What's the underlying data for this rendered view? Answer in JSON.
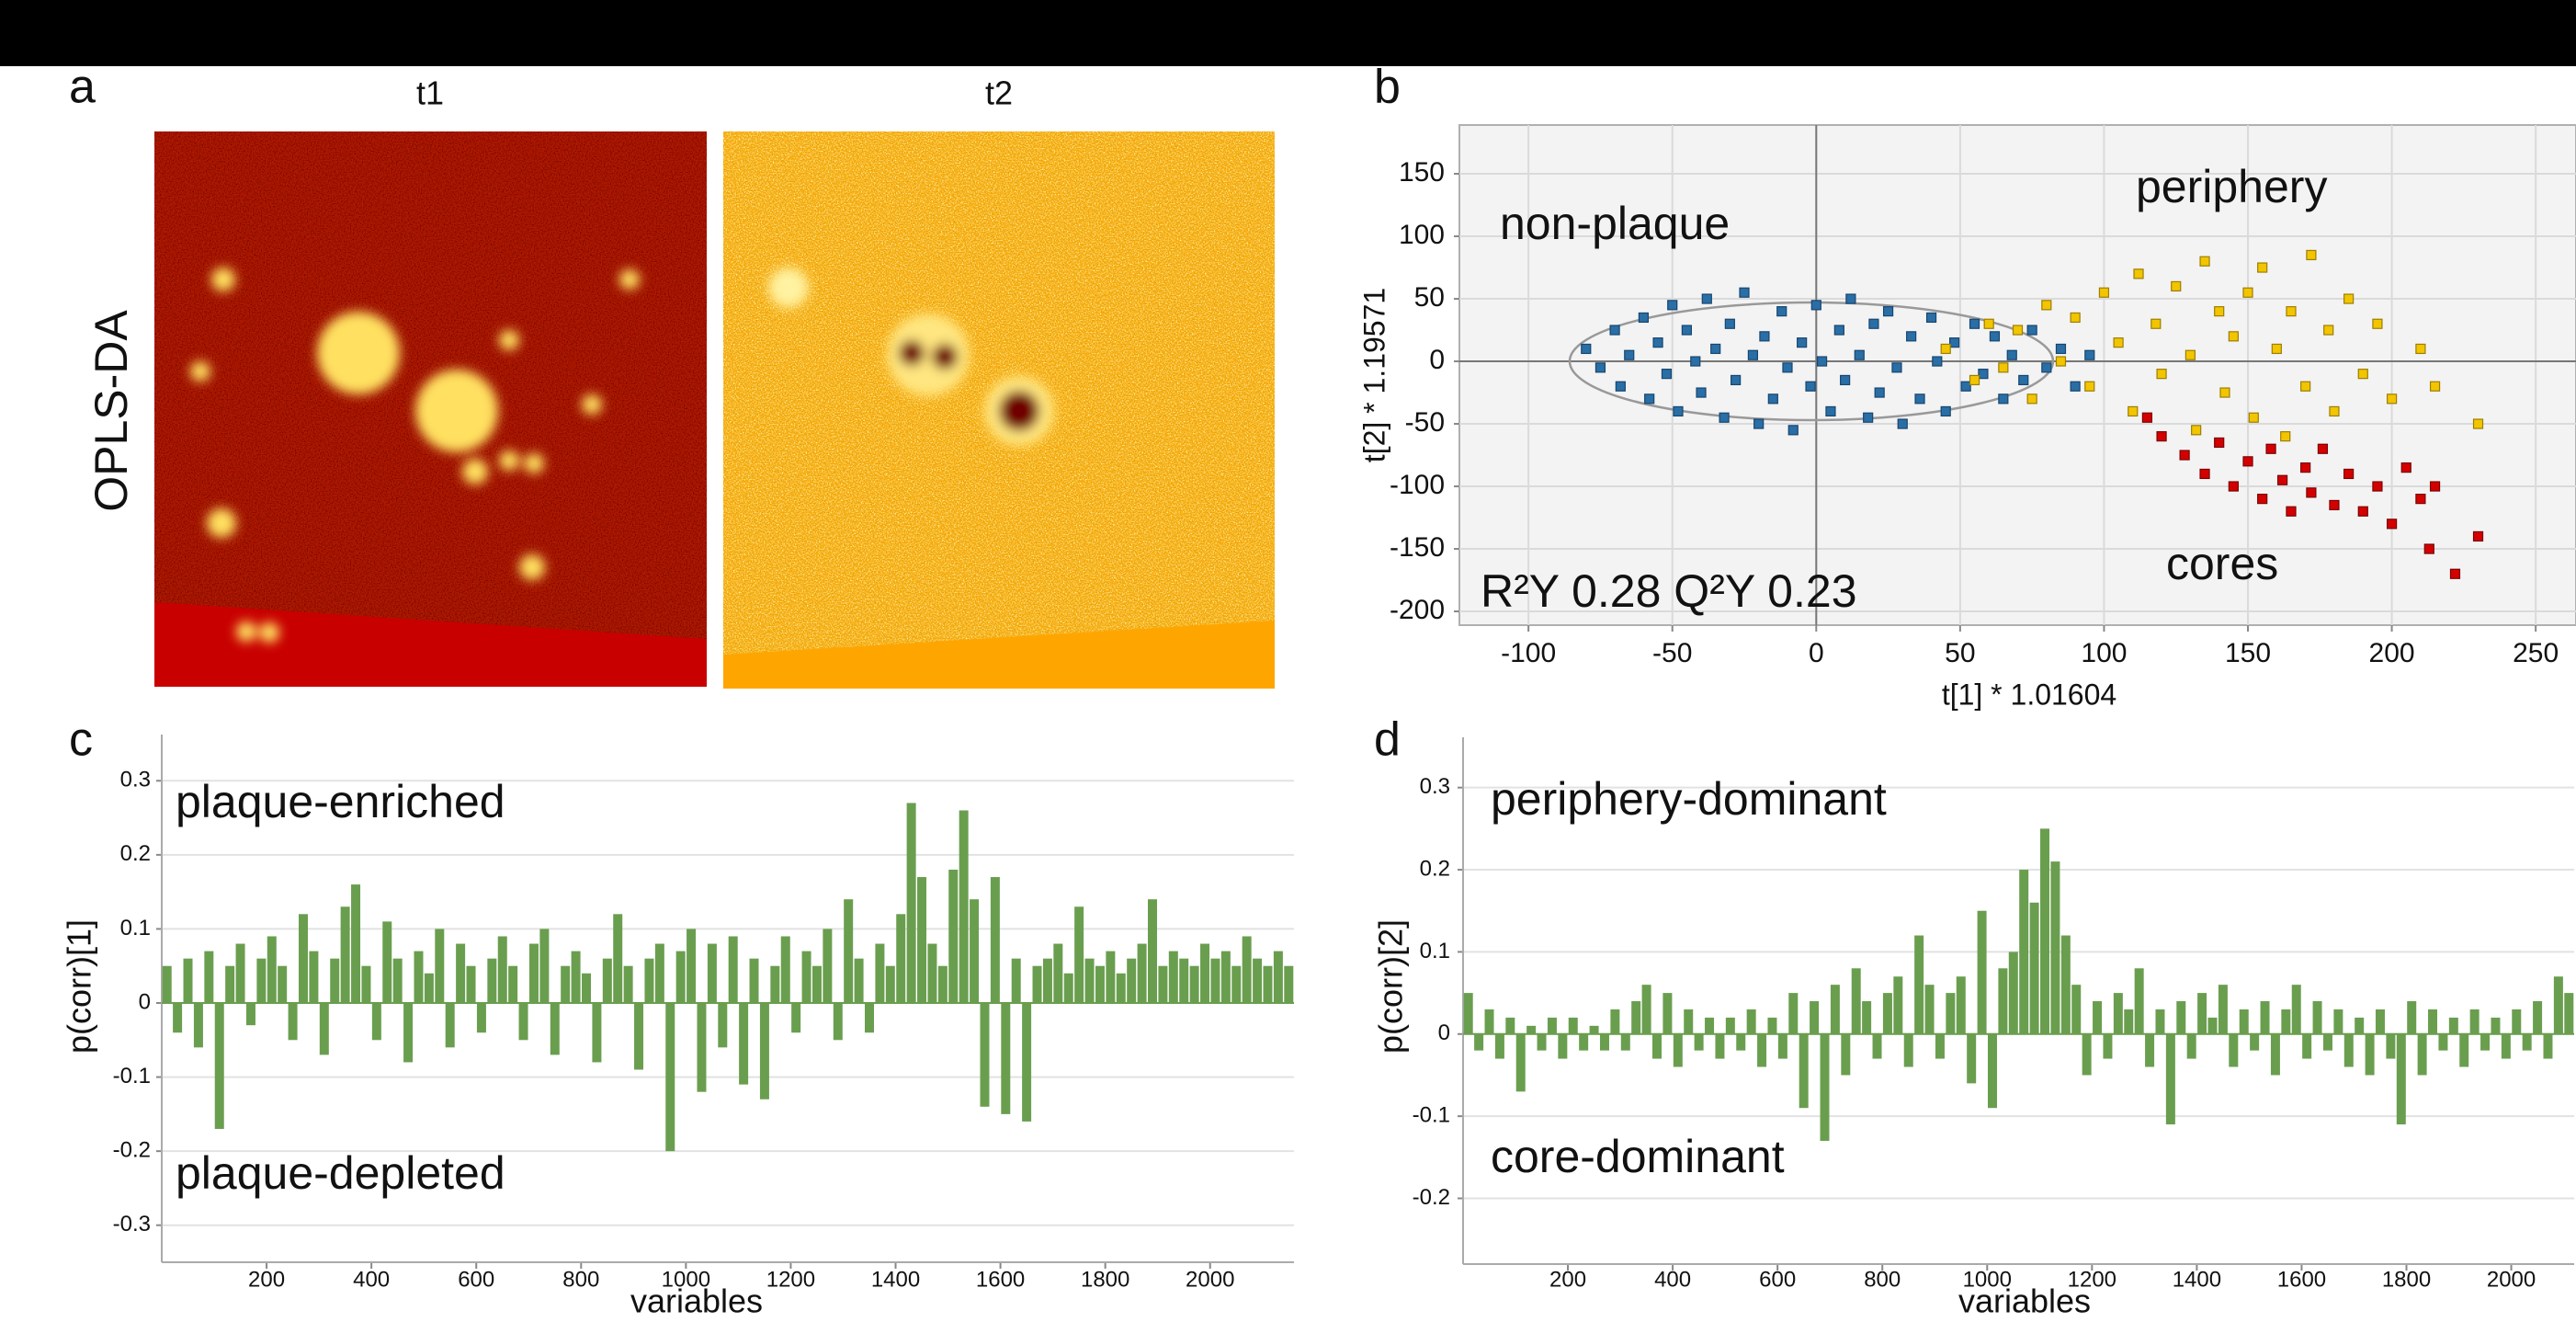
{
  "panel_a": {
    "label": "a",
    "images": [
      {
        "title": "t1"
      },
      {
        "title": "t2"
      }
    ],
    "row_label": "OPLS-DA"
  },
  "chart_data": [
    {
      "type": "scatter",
      "panel_label": "b",
      "xlabel": "t[1] * 1.01604",
      "ylabel": "t[2] * 1.19571",
      "annotations": [
        "R²Y 0.28 Q²Y 0.23"
      ],
      "xlim": [
        -124,
        264
      ],
      "ylim": [
        -211,
        189
      ],
      "xticks": [
        -100,
        -50,
        0,
        50,
        100,
        150,
        200,
        250
      ],
      "yticks": [
        -200,
        -150,
        -100,
        -50,
        0,
        50,
        100,
        150
      ],
      "grid": true,
      "series": [
        {
          "name": "non-plaque",
          "color": "#2a6ea6",
          "x": [
            -80,
            -75,
            -70,
            -68,
            -65,
            -60,
            -58,
            -55,
            -52,
            -50,
            -48,
            -45,
            -42,
            -40,
            -38,
            -35,
            -32,
            -30,
            -28,
            -25,
            -22,
            -20,
            -18,
            -15,
            -12,
            -10,
            -8,
            -5,
            -2,
            0,
            2,
            5,
            8,
            10,
            12,
            15,
            18,
            20,
            22,
            25,
            28,
            30,
            33,
            36,
            40,
            42,
            45,
            48,
            52,
            55,
            58,
            62,
            65,
            68,
            72,
            75,
            80,
            85,
            90,
            95
          ],
          "y": [
            10,
            -5,
            25,
            -20,
            5,
            35,
            -30,
            15,
            -10,
            45,
            -40,
            25,
            0,
            -25,
            50,
            10,
            -45,
            30,
            -15,
            55,
            5,
            -50,
            20,
            -30,
            40,
            -5,
            -55,
            15,
            -20,
            45,
            0,
            -40,
            25,
            -15,
            50,
            5,
            -45,
            30,
            -25,
            40,
            -5,
            -50,
            20,
            -30,
            35,
            0,
            -40,
            15,
            -20,
            30,
            -10,
            20,
            -30,
            5,
            -15,
            25,
            -5,
            10,
            -20,
            5
          ]
        },
        {
          "name": "periphery",
          "color": "#f2c500",
          "x": [
            45,
            55,
            60,
            65,
            70,
            75,
            80,
            85,
            90,
            95,
            100,
            105,
            110,
            112,
            118,
            120,
            125,
            130,
            132,
            135,
            140,
            142,
            145,
            150,
            152,
            155,
            160,
            163,
            165,
            170,
            172,
            178,
            180,
            185,
            190,
            195,
            200,
            210,
            215,
            230
          ],
          "y": [
            10,
            -15,
            30,
            -5,
            25,
            -30,
            45,
            0,
            35,
            -20,
            55,
            15,
            -40,
            70,
            30,
            -10,
            60,
            5,
            -55,
            80,
            40,
            -25,
            20,
            55,
            -45,
            75,
            10,
            -60,
            40,
            -20,
            85,
            25,
            -40,
            50,
            -10,
            30,
            -30,
            10,
            -20,
            -50
          ]
        },
        {
          "name": "cores",
          "color": "#d40000",
          "x": [
            115,
            120,
            128,
            135,
            140,
            145,
            150,
            155,
            158,
            162,
            165,
            170,
            172,
            176,
            180,
            185,
            190,
            195,
            200,
            205,
            210,
            213,
            215,
            222,
            230
          ],
          "y": [
            -45,
            -60,
            -75,
            -90,
            -65,
            -100,
            -80,
            -110,
            -70,
            -95,
            -120,
            -85,
            -105,
            -70,
            -115,
            -90,
            -120,
            -100,
            -130,
            -85,
            -110,
            -150,
            -100,
            -170,
            -140
          ]
        }
      ]
    },
    {
      "type": "bar",
      "panel_label": "c",
      "xlabel": "variables",
      "ylabel": "p(corr)[1]",
      "annotations": [
        "plaque-enriched",
        "plaque-depleted"
      ],
      "color": "#6a9e4f",
      "xlim": [
        0,
        2160
      ],
      "ylim": [
        -0.35,
        0.35
      ],
      "xticks": [
        200,
        400,
        600,
        800,
        1000,
        1200,
        1400,
        1600,
        1800,
        2000
      ],
      "yticks": [
        -0.3,
        -0.2,
        -0.1,
        0,
        0.1,
        0.2,
        0.3
      ],
      "grid": true,
      "x": [
        10,
        30,
        50,
        70,
        90,
        110,
        130,
        150,
        170,
        190,
        210,
        230,
        250,
        270,
        290,
        310,
        330,
        350,
        370,
        390,
        410,
        430,
        450,
        470,
        490,
        510,
        530,
        550,
        570,
        590,
        610,
        630,
        650,
        670,
        690,
        710,
        730,
        750,
        770,
        790,
        810,
        830,
        850,
        870,
        890,
        910,
        930,
        950,
        970,
        990,
        1010,
        1030,
        1050,
        1070,
        1090,
        1110,
        1130,
        1150,
        1170,
        1190,
        1210,
        1230,
        1250,
        1270,
        1290,
        1310,
        1330,
        1350,
        1370,
        1390,
        1410,
        1430,
        1450,
        1470,
        1490,
        1510,
        1530,
        1550,
        1570,
        1590,
        1610,
        1630,
        1650,
        1670,
        1690,
        1710,
        1730,
        1750,
        1770,
        1790,
        1810,
        1830,
        1850,
        1870,
        1890,
        1910,
        1930,
        1950,
        1970,
        1990,
        2010,
        2030,
        2050,
        2070,
        2090,
        2110,
        2130,
        2150
      ],
      "values": [
        0.05,
        -0.04,
        0.06,
        -0.06,
        0.07,
        -0.17,
        0.05,
        0.08,
        -0.03,
        0.06,
        0.09,
        0.05,
        -0.05,
        0.12,
        0.07,
        -0.07,
        0.06,
        0.13,
        0.16,
        0.05,
        -0.05,
        0.11,
        0.06,
        -0.08,
        0.07,
        0.04,
        0.1,
        -0.06,
        0.08,
        0.05,
        -0.04,
        0.06,
        0.09,
        0.05,
        -0.05,
        0.08,
        0.1,
        -0.07,
        0.05,
        0.07,
        0.04,
        -0.08,
        0.06,
        0.12,
        0.05,
        -0.09,
        0.06,
        0.08,
        -0.2,
        0.07,
        0.1,
        -0.12,
        0.08,
        -0.06,
        0.09,
        -0.11,
        0.06,
        -0.13,
        0.05,
        0.09,
        -0.04,
        0.07,
        0.05,
        0.1,
        -0.05,
        0.14,
        0.06,
        -0.04,
        0.08,
        0.05,
        0.12,
        0.27,
        0.17,
        0.08,
        0.05,
        0.18,
        0.26,
        0.14,
        -0.14,
        0.17,
        -0.15,
        0.06,
        -0.16,
        0.05,
        0.06,
        0.08,
        0.04,
        0.13,
        0.06,
        0.05,
        0.07,
        0.04,
        0.06,
        0.08,
        0.14,
        0.05,
        0.07,
        0.06,
        0.05,
        0.08,
        0.06,
        0.07,
        0.05,
        0.09,
        0.06,
        0.05,
        0.07,
        0.05
      ]
    },
    {
      "type": "bar",
      "panel_label": "d",
      "xlabel": "variables",
      "ylabel": "p(corr)[2]",
      "annotations": [
        "periphery-dominant",
        "core-dominant"
      ],
      "color": "#6a9e4f",
      "xlim": [
        0,
        2120
      ],
      "ylim": [
        -0.28,
        0.35
      ],
      "xticks": [
        200,
        400,
        600,
        800,
        1000,
        1200,
        1400,
        1600,
        1800,
        2000
      ],
      "yticks": [
        -0.2,
        -0.1,
        0,
        0.1,
        0.2,
        0.3
      ],
      "grid": true,
      "x": [
        10,
        30,
        50,
        70,
        90,
        110,
        130,
        150,
        170,
        190,
        210,
        230,
        250,
        270,
        290,
        310,
        330,
        350,
        370,
        390,
        410,
        430,
        450,
        470,
        490,
        510,
        530,
        550,
        570,
        590,
        610,
        630,
        650,
        670,
        690,
        710,
        730,
        750,
        770,
        790,
        810,
        830,
        850,
        870,
        890,
        910,
        930,
        950,
        970,
        990,
        1010,
        1030,
        1050,
        1070,
        1090,
        1110,
        1130,
        1150,
        1170,
        1190,
        1210,
        1230,
        1250,
        1270,
        1290,
        1310,
        1330,
        1350,
        1370,
        1390,
        1410,
        1430,
        1450,
        1470,
        1490,
        1510,
        1530,
        1550,
        1570,
        1590,
        1610,
        1630,
        1650,
        1670,
        1690,
        1710,
        1730,
        1750,
        1770,
        1790,
        1810,
        1830,
        1850,
        1870,
        1890,
        1910,
        1930,
        1950,
        1970,
        1990,
        2010,
        2030,
        2050,
        2070,
        2090,
        2110
      ],
      "values": [
        0.05,
        -0.02,
        0.03,
        -0.03,
        0.02,
        -0.07,
        0.01,
        -0.02,
        0.02,
        -0.03,
        0.02,
        -0.02,
        0.01,
        -0.02,
        0.03,
        -0.02,
        0.04,
        0.06,
        -0.03,
        0.05,
        -0.04,
        0.03,
        -0.02,
        0.02,
        -0.03,
        0.02,
        -0.02,
        0.03,
        -0.04,
        0.02,
        -0.03,
        0.05,
        -0.09,
        0.04,
        -0.13,
        0.06,
        -0.05,
        0.08,
        0.04,
        -0.03,
        0.05,
        0.07,
        -0.04,
        0.12,
        0.06,
        -0.03,
        0.05,
        0.07,
        -0.06,
        0.15,
        -0.09,
        0.08,
        0.1,
        0.2,
        0.16,
        0.25,
        0.21,
        0.12,
        0.06,
        -0.05,
        0.04,
        -0.03,
        0.05,
        0.03,
        0.08,
        -0.04,
        0.03,
        -0.11,
        0.04,
        -0.03,
        0.05,
        0.02,
        0.06,
        -0.04,
        0.03,
        -0.02,
        0.04,
        -0.05,
        0.03,
        0.06,
        -0.03,
        0.04,
        -0.02,
        0.03,
        -0.04,
        0.02,
        -0.05,
        0.03,
        -0.03,
        -0.11,
        0.04,
        -0.05,
        0.03,
        -0.02,
        0.02,
        -0.04,
        0.03,
        -0.02,
        0.02,
        -0.03,
        0.03,
        -0.02,
        0.04,
        -0.03,
        0.07,
        0.05
      ]
    }
  ]
}
